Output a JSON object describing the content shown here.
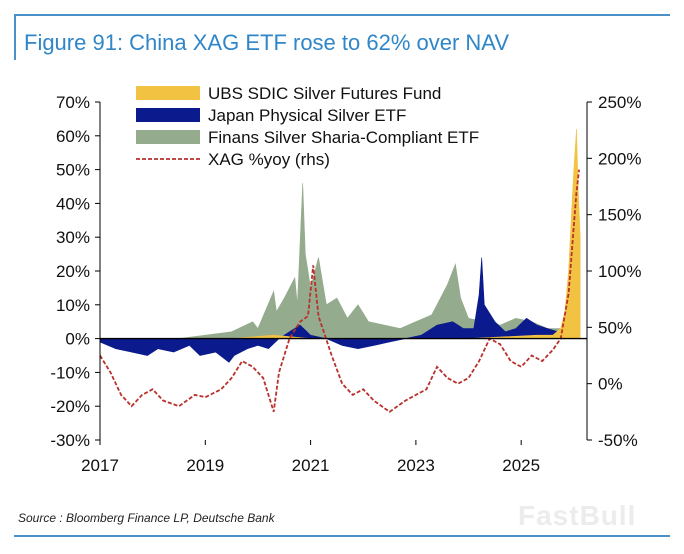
{
  "header": {
    "title": "Figure 91: China XAG ETF rose to 62% over NAV"
  },
  "footer": {
    "source": "Source : Bloomberg Finance LP, Deutsche Bank",
    "watermark": "FastBull"
  },
  "colors": {
    "ubs": "#f2c243",
    "japan": "#0b1a8c",
    "finans": "#95ab8e",
    "xag": "#b8312b",
    "frame": "#4a90c9",
    "title": "#2f86c8"
  },
  "chart_data": {
    "type": "area",
    "left_axis": {
      "range": [
        -30,
        70
      ],
      "ticks": [
        -30,
        -20,
        -10,
        0,
        10,
        20,
        30,
        40,
        50,
        60,
        70
      ],
      "tick_labels": [
        "-30%",
        "-20%",
        "-10%",
        "0%",
        "10%",
        "20%",
        "30%",
        "40%",
        "50%",
        "60%",
        "70%"
      ]
    },
    "right_axis": {
      "range": [
        -50,
        250
      ],
      "ticks": [
        -50,
        0,
        50,
        100,
        150,
        200,
        250
      ],
      "tick_labels": [
        "-50%",
        "0%",
        "50%",
        "100%",
        "150%",
        "200%",
        "250%"
      ]
    },
    "x_axis": {
      "range": [
        2017,
        2026.25
      ],
      "ticks": [
        2017,
        2019,
        2021,
        2023,
        2025
      ],
      "tick_labels": [
        "2017",
        "2019",
        "2021",
        "2023",
        "2025"
      ]
    },
    "legend_position": "top-center",
    "grid": false,
    "series": [
      {
        "name": "UBS SDIC Silver Futures Fund",
        "style": "area",
        "axis": "left",
        "points": [
          [
            2017.0,
            0
          ],
          [
            2019.5,
            0
          ],
          [
            2020.3,
            1
          ],
          [
            2021.0,
            0
          ],
          [
            2022.0,
            0
          ],
          [
            2024.0,
            0
          ],
          [
            2025.3,
            1
          ],
          [
            2025.6,
            1
          ],
          [
            2025.75,
            3
          ],
          [
            2025.83,
            8
          ],
          [
            2025.9,
            20
          ],
          [
            2025.95,
            35
          ],
          [
            2026.0,
            50
          ],
          [
            2026.05,
            62
          ],
          [
            2026.08,
            46
          ],
          [
            2026.12,
            30
          ]
        ]
      },
      {
        "name": "Japan Physical Silver ETF",
        "style": "area",
        "axis": "left",
        "points": [
          [
            2017.0,
            -1
          ],
          [
            2017.3,
            -3
          ],
          [
            2017.6,
            -4
          ],
          [
            2017.9,
            -5
          ],
          [
            2018.1,
            -3
          ],
          [
            2018.4,
            -4
          ],
          [
            2018.7,
            -2
          ],
          [
            2018.9,
            -5
          ],
          [
            2019.2,
            -4
          ],
          [
            2019.45,
            -7
          ],
          [
            2019.55,
            -5
          ],
          [
            2019.8,
            -3
          ],
          [
            2020.0,
            -2
          ],
          [
            2020.2,
            -3
          ],
          [
            2020.4,
            0
          ],
          [
            2020.6,
            2
          ],
          [
            2020.8,
            4
          ],
          [
            2021.0,
            1
          ],
          [
            2021.3,
            0
          ],
          [
            2021.6,
            -2
          ],
          [
            2021.9,
            -3
          ],
          [
            2022.2,
            -2
          ],
          [
            2022.5,
            -1
          ],
          [
            2022.8,
            0
          ],
          [
            2023.1,
            1
          ],
          [
            2023.4,
            4
          ],
          [
            2023.7,
            5
          ],
          [
            2023.9,
            3
          ],
          [
            2024.1,
            3
          ],
          [
            2024.2,
            13
          ],
          [
            2024.25,
            24
          ],
          [
            2024.3,
            10
          ],
          [
            2024.5,
            5
          ],
          [
            2024.7,
            2
          ],
          [
            2024.9,
            3
          ],
          [
            2025.1,
            6
          ],
          [
            2025.3,
            4
          ],
          [
            2025.5,
            3
          ],
          [
            2025.7,
            2
          ],
          [
            2025.9,
            4
          ],
          [
            2026.12,
            2
          ]
        ]
      },
      {
        "name": "Finans Silver Sharia-Compliant ETF",
        "style": "area",
        "axis": "left",
        "points": [
          [
            2017.0,
            0
          ],
          [
            2018.5,
            0
          ],
          [
            2019.0,
            1
          ],
          [
            2019.5,
            2
          ],
          [
            2019.9,
            5
          ],
          [
            2020.0,
            3
          ],
          [
            2020.3,
            14
          ],
          [
            2020.35,
            8
          ],
          [
            2020.5,
            12
          ],
          [
            2020.7,
            18
          ],
          [
            2020.75,
            10
          ],
          [
            2020.85,
            46
          ],
          [
            2020.9,
            25
          ],
          [
            2021.0,
            15
          ],
          [
            2021.15,
            24
          ],
          [
            2021.3,
            10
          ],
          [
            2021.5,
            12
          ],
          [
            2021.7,
            6
          ],
          [
            2021.9,
            10
          ],
          [
            2022.1,
            5
          ],
          [
            2022.4,
            4
          ],
          [
            2022.7,
            3
          ],
          [
            2023.0,
            5
          ],
          [
            2023.3,
            7
          ],
          [
            2023.6,
            16
          ],
          [
            2023.75,
            22
          ],
          [
            2023.85,
            12
          ],
          [
            2024.0,
            6
          ],
          [
            2024.3,
            5
          ],
          [
            2024.6,
            4
          ],
          [
            2024.9,
            6
          ],
          [
            2025.2,
            5
          ],
          [
            2025.5,
            3
          ],
          [
            2025.8,
            3
          ],
          [
            2026.12,
            2
          ]
        ]
      },
      {
        "name": "XAG %yoy (rhs)",
        "style": "dashed-line",
        "axis": "right",
        "points": [
          [
            2017.0,
            25
          ],
          [
            2017.2,
            10
          ],
          [
            2017.4,
            -10
          ],
          [
            2017.6,
            -20
          ],
          [
            2017.8,
            -10
          ],
          [
            2018.0,
            -5
          ],
          [
            2018.2,
            -15
          ],
          [
            2018.5,
            -20
          ],
          [
            2018.8,
            -10
          ],
          [
            2019.0,
            -12
          ],
          [
            2019.3,
            -5
          ],
          [
            2019.5,
            5
          ],
          [
            2019.7,
            20
          ],
          [
            2019.9,
            15
          ],
          [
            2020.1,
            5
          ],
          [
            2020.3,
            -25
          ],
          [
            2020.4,
            10
          ],
          [
            2020.6,
            40
          ],
          [
            2020.8,
            55
          ],
          [
            2020.95,
            60
          ],
          [
            2021.05,
            105
          ],
          [
            2021.15,
            60
          ],
          [
            2021.4,
            25
          ],
          [
            2021.6,
            0
          ],
          [
            2021.8,
            -10
          ],
          [
            2022.0,
            -5
          ],
          [
            2022.2,
            -15
          ],
          [
            2022.5,
            -25
          ],
          [
            2022.8,
            -15
          ],
          [
            2023.0,
            -10
          ],
          [
            2023.2,
            -5
          ],
          [
            2023.4,
            15
          ],
          [
            2023.6,
            5
          ],
          [
            2023.8,
            0
          ],
          [
            2024.0,
            5
          ],
          [
            2024.2,
            20
          ],
          [
            2024.4,
            40
          ],
          [
            2024.6,
            35
          ],
          [
            2024.8,
            20
          ],
          [
            2025.0,
            15
          ],
          [
            2025.2,
            25
          ],
          [
            2025.4,
            20
          ],
          [
            2025.6,
            30
          ],
          [
            2025.75,
            40
          ],
          [
            2025.9,
            80
          ],
          [
            2026.0,
            140
          ],
          [
            2026.05,
            170
          ],
          [
            2026.1,
            190
          ]
        ]
      }
    ]
  }
}
